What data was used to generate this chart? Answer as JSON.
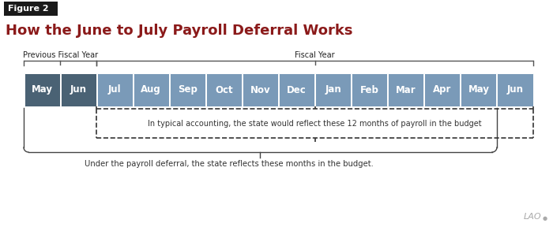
{
  "title": "How the June to July Payroll Deferral Works",
  "figure_label": "Figure 2",
  "title_color": "#8B1A1A",
  "months": [
    "May",
    "Jun",
    "Jul",
    "Aug",
    "Sep",
    "Oct",
    "Nov",
    "Dec",
    "Jan",
    "Feb",
    "Mar",
    "Apr",
    "May",
    "Jun"
  ],
  "dark_indices": [
    0,
    1
  ],
  "dark_color": "#4A6274",
  "light_color": "#7A9AB8",
  "prev_label": "Previous Fiscal Year",
  "fiscal_label": "Fiscal Year",
  "typical_text": "In typical accounting, the state would reflect these 12 months of payroll in the budget",
  "deferral_text": "Under the payroll deferral, the state reflects these months in the budget.",
  "bg_color": "#ffffff",
  "lao_text": "LAO",
  "font_size_title": 13,
  "font_size_months": 8.5,
  "font_size_small": 7.0,
  "font_size_annotation": 7.0
}
